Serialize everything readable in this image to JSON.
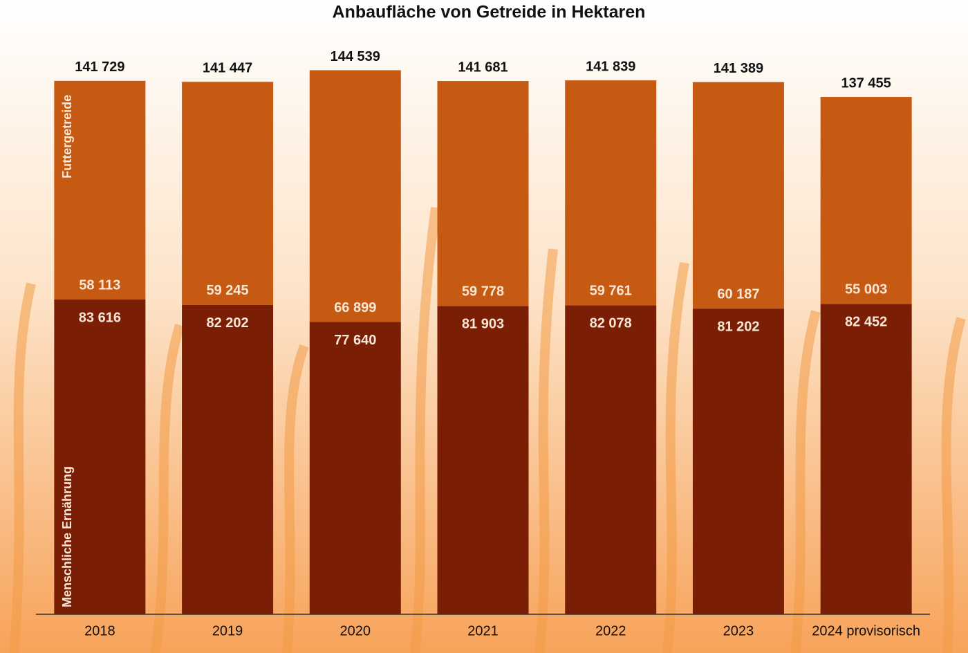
{
  "chart_data": {
    "type": "stacked-bar",
    "title": "Anbaufläche von Getreide in Hektaren",
    "categories": [
      "2018",
      "2019",
      "2020",
      "2021",
      "2022",
      "2023",
      "2024 provisorisch"
    ],
    "series": [
      {
        "name": "Menschliche Ernährung",
        "color": "#7a1e05",
        "values": [
          83616,
          82202,
          77640,
          81903,
          82078,
          81202,
          82452
        ],
        "value_labels": [
          "83 616",
          "82 202",
          "77 640",
          "81 903",
          "82 078",
          "81 202",
          "82 452"
        ]
      },
      {
        "name": "Futtergetreide",
        "color": "#c65a12",
        "values": [
          58113,
          59245,
          66899,
          59778,
          59761,
          60187,
          55003
        ],
        "value_labels": [
          "58 113",
          "59 245",
          "66 899",
          "59 778",
          "59 761",
          "60 187",
          "55 003"
        ]
      }
    ],
    "totals": [
      141729,
      141447,
      144539,
      141681,
      141839,
      141389,
      137455
    ],
    "total_labels": [
      "141 729",
      "141 447",
      "144 539",
      "141 681",
      "141 839",
      "141 389",
      "137 455"
    ],
    "ylim": [
      0,
      145000
    ]
  }
}
